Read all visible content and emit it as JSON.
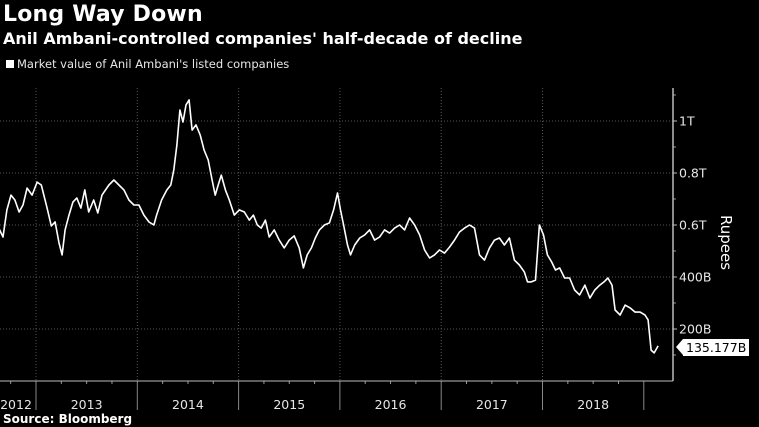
{
  "header": {
    "title": "Long Way Down",
    "subtitle": "Anil Ambani-controlled companies' half-decade of decline",
    "source": "Source: Bloomberg"
  },
  "colors": {
    "background": "#000000",
    "line": "#ffffff",
    "grid": "#555555"
  },
  "chart_data": {
    "type": "line",
    "title": "Long Way Down",
    "subtitle": "Anil Ambani-controlled companies' half-decade of decline",
    "ylabel": "Rupees",
    "xlabel": "",
    "y_unit": "billion rupees",
    "ylim": [
      0,
      1150
    ],
    "y_ticks": [
      200,
      400,
      600,
      800,
      1000
    ],
    "y_tick_labels": [
      "200B",
      "400B",
      "0.6T",
      "0.8T",
      "1T"
    ],
    "x_tick_labels": [
      "2012",
      "2013",
      "2014",
      "2015",
      "2016",
      "2017",
      "2018"
    ],
    "grid": true,
    "y_axis_side": "right",
    "legend_placement": "top-left",
    "last_value_label": "135.177B",
    "series": [
      {
        "name": "Market value of Anil Ambani's listed companies",
        "points": [
          [
            "2012-08-20",
            588
          ],
          [
            "2012-09-04",
            554
          ],
          [
            "2012-09-18",
            658
          ],
          [
            "2012-10-03",
            715
          ],
          [
            "2012-10-17",
            696
          ],
          [
            "2012-11-01",
            650
          ],
          [
            "2012-11-15",
            677
          ],
          [
            "2012-11-30",
            742
          ],
          [
            "2012-12-18",
            715
          ],
          [
            "2013-01-05",
            765
          ],
          [
            "2013-01-20",
            754
          ],
          [
            "2013-02-10",
            665
          ],
          [
            "2013-02-25",
            596
          ],
          [
            "2013-03-11",
            612
          ],
          [
            "2013-03-25",
            531
          ],
          [
            "2013-04-05",
            485
          ],
          [
            "2013-04-16",
            581
          ],
          [
            "2013-04-30",
            638
          ],
          [
            "2013-05-14",
            688
          ],
          [
            "2013-05-28",
            704
          ],
          [
            "2013-06-12",
            665
          ],
          [
            "2013-06-26",
            735
          ],
          [
            "2013-07-10",
            650
          ],
          [
            "2013-07-28",
            696
          ],
          [
            "2013-08-12",
            646
          ],
          [
            "2013-08-27",
            715
          ],
          [
            "2013-09-21",
            754
          ],
          [
            "2013-10-09",
            773
          ],
          [
            "2013-10-27",
            754
          ],
          [
            "2013-11-14",
            735
          ],
          [
            "2013-12-02",
            696
          ],
          [
            "2013-12-20",
            677
          ],
          [
            "2014-01-07",
            677
          ],
          [
            "2014-01-25",
            638
          ],
          [
            "2014-02-12",
            612
          ],
          [
            "2014-03-02",
            600
          ],
          [
            "2014-03-12",
            638
          ],
          [
            "2014-03-30",
            696
          ],
          [
            "2014-04-18",
            735
          ],
          [
            "2014-05-02",
            754
          ],
          [
            "2014-05-13",
            812
          ],
          [
            "2014-05-24",
            908
          ],
          [
            "2014-06-04",
            1042
          ],
          [
            "2014-06-15",
            996
          ],
          [
            "2014-06-26",
            1062
          ],
          [
            "2014-07-07",
            1081
          ],
          [
            "2014-07-18",
            965
          ],
          [
            "2014-08-01",
            985
          ],
          [
            "2014-08-16",
            946
          ],
          [
            "2014-08-30",
            888
          ],
          [
            "2014-09-14",
            850
          ],
          [
            "2014-09-28",
            773
          ],
          [
            "2014-10-09",
            715
          ],
          [
            "2014-10-20",
            754
          ],
          [
            "2014-10-31",
            792
          ],
          [
            "2014-11-15",
            735
          ],
          [
            "2014-11-29",
            696
          ],
          [
            "2014-12-17",
            638
          ],
          [
            "2015-01-04",
            658
          ],
          [
            "2015-01-22",
            650
          ],
          [
            "2015-02-09",
            619
          ],
          [
            "2015-02-24",
            638
          ],
          [
            "2015-03-10",
            600
          ],
          [
            "2015-03-24",
            588
          ],
          [
            "2015-04-08",
            619
          ],
          [
            "2015-04-22",
            554
          ],
          [
            "2015-05-10",
            581
          ],
          [
            "2015-05-28",
            542
          ],
          [
            "2015-06-15",
            512
          ],
          [
            "2015-07-03",
            542
          ],
          [
            "2015-07-21",
            558
          ],
          [
            "2015-08-08",
            512
          ],
          [
            "2015-08-23",
            435
          ],
          [
            "2015-09-06",
            485
          ],
          [
            "2015-09-21",
            512
          ],
          [
            "2015-10-05",
            550
          ],
          [
            "2015-10-20",
            581
          ],
          [
            "2015-11-07",
            600
          ],
          [
            "2015-11-25",
            608
          ],
          [
            "2015-12-10",
            658
          ],
          [
            "2015-12-24",
            723
          ],
          [
            "2016-01-04",
            658
          ],
          [
            "2016-01-15",
            600
          ],
          [
            "2016-01-29",
            523
          ],
          [
            "2016-02-09",
            485
          ],
          [
            "2016-02-24",
            523
          ],
          [
            "2016-03-13",
            550
          ],
          [
            "2016-03-31",
            562
          ],
          [
            "2016-04-18",
            581
          ],
          [
            "2016-05-06",
            542
          ],
          [
            "2016-05-24",
            554
          ],
          [
            "2016-06-11",
            581
          ],
          [
            "2016-06-29",
            569
          ],
          [
            "2016-07-17",
            588
          ],
          [
            "2016-08-04",
            600
          ],
          [
            "2016-08-22",
            581
          ],
          [
            "2016-09-09",
            627
          ],
          [
            "2016-09-27",
            600
          ],
          [
            "2016-10-15",
            562
          ],
          [
            "2016-11-02",
            504
          ],
          [
            "2016-11-20",
            473
          ],
          [
            "2016-12-08",
            485
          ],
          [
            "2016-12-26",
            504
          ],
          [
            "2017-01-13",
            492
          ],
          [
            "2017-01-31",
            515
          ],
          [
            "2017-02-18",
            542
          ],
          [
            "2017-03-08",
            573
          ],
          [
            "2017-03-26",
            588
          ],
          [
            "2017-04-13",
            600
          ],
          [
            "2017-05-01",
            588
          ],
          [
            "2017-05-19",
            485
          ],
          [
            "2017-06-06",
            465
          ],
          [
            "2017-06-24",
            512
          ],
          [
            "2017-07-12",
            542
          ],
          [
            "2017-07-30",
            550
          ],
          [
            "2017-08-17",
            523
          ],
          [
            "2017-09-04",
            550
          ],
          [
            "2017-09-22",
            465
          ],
          [
            "2017-10-10",
            446
          ],
          [
            "2017-10-28",
            419
          ],
          [
            "2017-11-08",
            381
          ],
          [
            "2017-11-22",
            381
          ],
          [
            "2017-12-07",
            388
          ],
          [
            "2017-12-21",
            600
          ],
          [
            "2018-01-05",
            562
          ],
          [
            "2018-01-19",
            485
          ],
          [
            "2018-02-03",
            458
          ],
          [
            "2018-02-17",
            427
          ],
          [
            "2018-03-04",
            435
          ],
          [
            "2018-03-22",
            396
          ],
          [
            "2018-04-09",
            396
          ],
          [
            "2018-04-27",
            350
          ],
          [
            "2018-05-15",
            331
          ],
          [
            "2018-06-03",
            369
          ],
          [
            "2018-06-21",
            319
          ],
          [
            "2018-07-09",
            350
          ],
          [
            "2018-07-27",
            369
          ],
          [
            "2018-08-11",
            381
          ],
          [
            "2018-08-25",
            396
          ],
          [
            "2018-09-09",
            369
          ],
          [
            "2018-09-20",
            273
          ],
          [
            "2018-10-08",
            254
          ],
          [
            "2018-10-26",
            292
          ],
          [
            "2018-11-13",
            281
          ],
          [
            "2018-12-01",
            265
          ],
          [
            "2018-12-19",
            265
          ],
          [
            "2019-01-06",
            254
          ],
          [
            "2019-01-17",
            235
          ],
          [
            "2019-01-28",
            119
          ],
          [
            "2019-02-08",
            108
          ],
          [
            "2019-02-22",
            135.177
          ]
        ]
      }
    ]
  }
}
